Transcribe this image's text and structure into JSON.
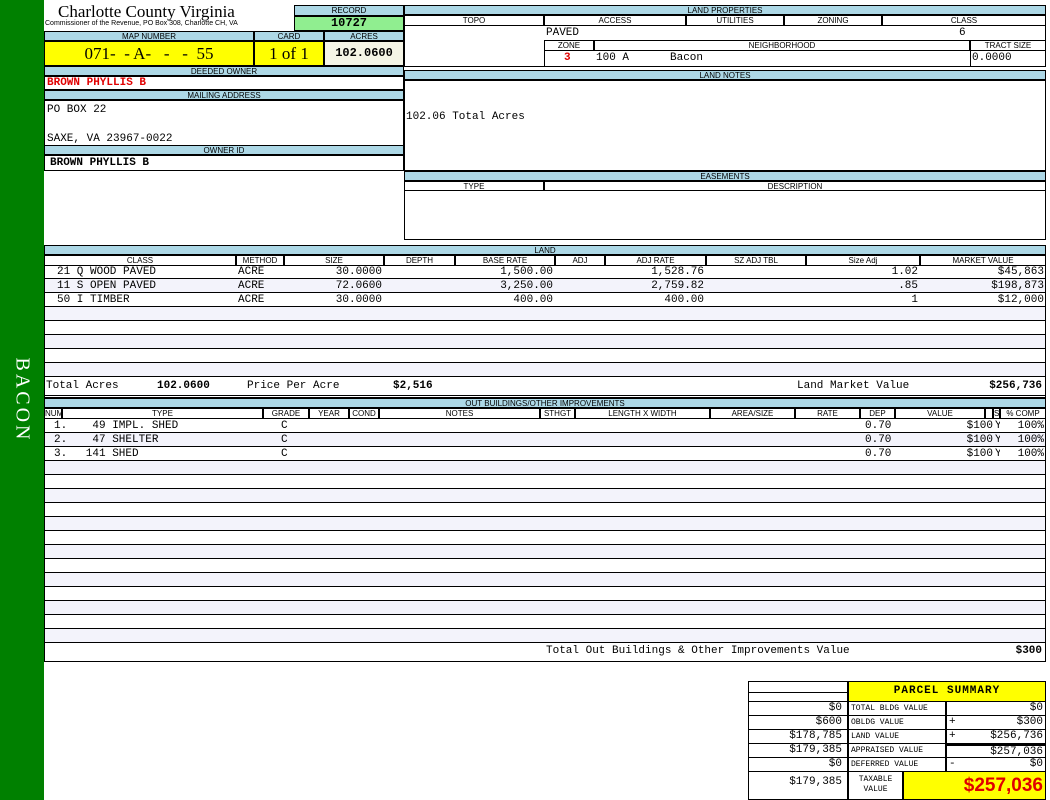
{
  "sidebar_label": "BACON",
  "header": {
    "title": "Charlotte County Virginia",
    "subtitle": "Commissioner of the Revenue, PO Box 308, Charlotte CH, VA",
    "record_label": "RECORD",
    "record": "10727",
    "map_number_label": "MAP NUMBER",
    "map_number": "071-  - A-   -   -  55",
    "card_label": "CARD",
    "card": "1 of 1",
    "acres_label": "ACRES",
    "acres": "102.0600"
  },
  "owner": {
    "deeded_label": "DEEDED OWNER",
    "deeded": "BROWN PHYLLIS B",
    "mailing_label": "MAILING ADDRESS",
    "address_line1": "PO BOX 22",
    "address_line2": "SAXE, VA 23967-0022",
    "owner_id_label": "OWNER ID",
    "owner_id": "BROWN PHYLLIS B"
  },
  "land_properties": {
    "title": "LAND PROPERTIES",
    "columns": [
      "TOPO",
      "ACCESS",
      "UTILITIES",
      "ZONING",
      "CLASS"
    ],
    "access": "PAVED",
    "class": "6",
    "zone_label": "ZONE",
    "neighborhood_label": "NEIGHBORHOOD",
    "tract_label": "TRACT SIZE",
    "zone": "3",
    "neighborhood_code": "100 A",
    "neighborhood": "Bacon",
    "tract_size": "0.0000"
  },
  "land_notes": {
    "title": "LAND NOTES",
    "text": "102.06 Total Acres"
  },
  "easements": {
    "title": "EASEMENTS",
    "columns": [
      "TYPE",
      "DESCRIPTION"
    ]
  },
  "land": {
    "title": "LAND",
    "columns": [
      "CLASS",
      "METHOD",
      "SIZE",
      "DEPTH",
      "BASE RATE",
      "ADJ",
      "ADJ RATE",
      "SZ ADJ TBL",
      "Size Adj",
      "MARKET VALUE"
    ],
    "rows": [
      [
        "21 Q WOOD PAVED",
        "ACRE",
        "30.0000",
        "",
        "1,500.00",
        "",
        "1,528.76",
        "",
        "1.02",
        "$45,863"
      ],
      [
        "11 S OPEN PAVED",
        "ACRE",
        "72.0600",
        "",
        "3,250.00",
        "",
        "2,759.82",
        "",
        ".85",
        "$198,873"
      ],
      [
        "50 I TIMBER",
        "ACRE",
        "30.0000",
        "",
        "400.00",
        "",
        "400.00",
        "",
        "1",
        "$12,000"
      ]
    ],
    "total_acres_label": "Total Acres",
    "total_acres": "102.0600",
    "price_per_acre_label": "Price Per Acre",
    "price_per_acre": "$2,516",
    "market_value_label": "Land Market Value",
    "market_value": "$256,736"
  },
  "outbuildings": {
    "title": "OUT BUILDINGS/OTHER IMPROVEMENTS",
    "columns": [
      "NUM",
      "TYPE",
      "GRADE",
      "YEAR",
      "COND",
      "NOTES",
      "STHGT",
      "LENGTH X WIDTH",
      "AREA/SIZE",
      "RATE",
      "DEP",
      "VALUE",
      "",
      "S",
      "% COMP"
    ],
    "rows": [
      [
        "1.",
        "49 IMPL. SHED",
        "C",
        "",
        "",
        "",
        "",
        "",
        "",
        "",
        "0.70",
        "$100",
        "",
        "Y",
        "100%"
      ],
      [
        "2.",
        "47 SHELTER",
        "C",
        "",
        "",
        "",
        "",
        "",
        "",
        "",
        "0.70",
        "$100",
        "",
        "Y",
        "100%"
      ],
      [
        "3.",
        "141 SHED",
        "C",
        "",
        "",
        "",
        "",
        "",
        "",
        "",
        "0.70",
        "$100",
        "",
        "Y",
        "100%"
      ]
    ],
    "total_label": "Total Out Buildings & Other Improvements Value",
    "total": "$300"
  },
  "summary": {
    "title": "PARCEL SUMMARY",
    "rows": [
      {
        "prior": "$0",
        "label": "TOTAL BLDG VALUE",
        "op": "",
        "value": "$0"
      },
      {
        "prior": "$600",
        "label": "OBLDG VALUE",
        "op": "+",
        "value": "$300"
      },
      {
        "prior": "$178,785",
        "label": "LAND VALUE",
        "op": "+",
        "value": "$256,736"
      },
      {
        "prior": "$179,385",
        "label": "APPRAISED VALUE",
        "op": "",
        "value": "$257,036"
      },
      {
        "prior": "$0",
        "label": "DEFERRED VALUE",
        "op": "-",
        "value": "$0"
      }
    ],
    "taxable_prior": "$179,385",
    "taxable_label": "TAXABLE VALUE",
    "taxable": "$257,036"
  },
  "colors": {
    "sidebar": "#008000",
    "header_band": "#add8e6",
    "highlight": "#ffff00",
    "record": "#90ee90",
    "owner_red": "#e00000"
  }
}
